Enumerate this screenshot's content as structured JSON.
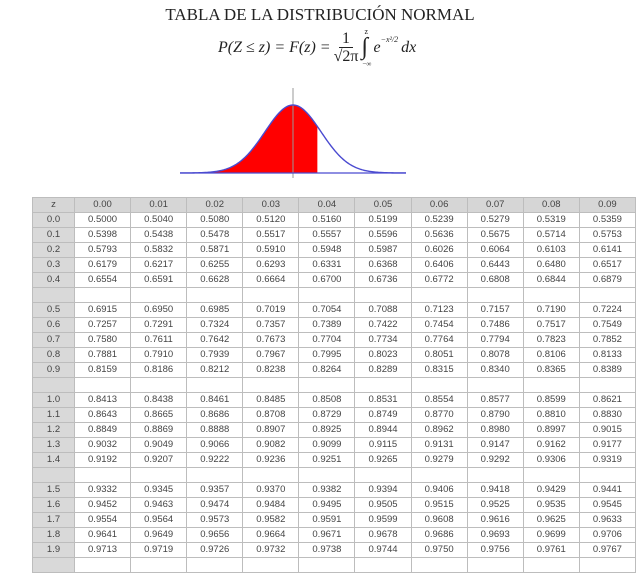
{
  "title": "TABLA DE LA DISTRIBUCIÓN NORMAL",
  "formula": {
    "lhs": "P(Z ≤ z) = F(z) =",
    "numerator": "1",
    "denominator": "√2π",
    "integral": "∫",
    "upper_limit": "z",
    "lower_limit": "−∞",
    "base": "e",
    "exponent": "−x²/2",
    "differential": "dx"
  },
  "curve": {
    "fill_color": "#ff0000",
    "line_color": "#4a4ad0",
    "shaded_to_z": 0.6
  },
  "table": {
    "headers": [
      "z",
      "0.00",
      "0.01",
      "0.02",
      "0.03",
      "0.04",
      "0.05",
      "0.06",
      "0.07",
      "0.08",
      "0.09"
    ],
    "groups": [
      [
        [
          "0.0",
          "0.5000",
          "0.5040",
          "0.5080",
          "0.5120",
          "0.5160",
          "0.5199",
          "0.5239",
          "0.5279",
          "0.5319",
          "0.5359"
        ],
        [
          "0.1",
          "0.5398",
          "0.5438",
          "0.5478",
          "0.5517",
          "0.5557",
          "0.5596",
          "0.5636",
          "0.5675",
          "0.5714",
          "0.5753"
        ],
        [
          "0.2",
          "0.5793",
          "0.5832",
          "0.5871",
          "0.5910",
          "0.5948",
          "0.5987",
          "0.6026",
          "0.6064",
          "0.6103",
          "0.6141"
        ],
        [
          "0.3",
          "0.6179",
          "0.6217",
          "0.6255",
          "0.6293",
          "0.6331",
          "0.6368",
          "0.6406",
          "0.6443",
          "0.6480",
          "0.6517"
        ],
        [
          "0.4",
          "0.6554",
          "0.6591",
          "0.6628",
          "0.6664",
          "0.6700",
          "0.6736",
          "0.6772",
          "0.6808",
          "0.6844",
          "0.6879"
        ]
      ],
      [
        [
          "0.5",
          "0.6915",
          "0.6950",
          "0.6985",
          "0.7019",
          "0.7054",
          "0.7088",
          "0.7123",
          "0.7157",
          "0.7190",
          "0.7224"
        ],
        [
          "0.6",
          "0.7257",
          "0.7291",
          "0.7324",
          "0.7357",
          "0.7389",
          "0.7422",
          "0.7454",
          "0.7486",
          "0.7517",
          "0.7549"
        ],
        [
          "0.7",
          "0.7580",
          "0.7611",
          "0.7642",
          "0.7673",
          "0.7704",
          "0.7734",
          "0.7764",
          "0.7794",
          "0.7823",
          "0.7852"
        ],
        [
          "0.8",
          "0.7881",
          "0.7910",
          "0.7939",
          "0.7967",
          "0.7995",
          "0.8023",
          "0.8051",
          "0.8078",
          "0.8106",
          "0.8133"
        ],
        [
          "0.9",
          "0.8159",
          "0.8186",
          "0.8212",
          "0.8238",
          "0.8264",
          "0.8289",
          "0.8315",
          "0.8340",
          "0.8365",
          "0.8389"
        ]
      ],
      [
        [
          "1.0",
          "0.8413",
          "0.8438",
          "0.8461",
          "0.8485",
          "0.8508",
          "0.8531",
          "0.8554",
          "0.8577",
          "0.8599",
          "0.8621"
        ],
        [
          "1.1",
          "0.8643",
          "0.8665",
          "0.8686",
          "0.8708",
          "0.8729",
          "0.8749",
          "0.8770",
          "0.8790",
          "0.8810",
          "0.8830"
        ],
        [
          "1.2",
          "0.8849",
          "0.8869",
          "0.8888",
          "0.8907",
          "0.8925",
          "0.8944",
          "0.8962",
          "0.8980",
          "0.8997",
          "0.9015"
        ],
        [
          "1.3",
          "0.9032",
          "0.9049",
          "0.9066",
          "0.9082",
          "0.9099",
          "0.9115",
          "0.9131",
          "0.9147",
          "0.9162",
          "0.9177"
        ],
        [
          "1.4",
          "0.9192",
          "0.9207",
          "0.9222",
          "0.9236",
          "0.9251",
          "0.9265",
          "0.9279",
          "0.9292",
          "0.9306",
          "0.9319"
        ]
      ],
      [
        [
          "1.5",
          "0.9332",
          "0.9345",
          "0.9357",
          "0.9370",
          "0.9382",
          "0.9394",
          "0.9406",
          "0.9418",
          "0.9429",
          "0.9441"
        ],
        [
          "1.6",
          "0.9452",
          "0.9463",
          "0.9474",
          "0.9484",
          "0.9495",
          "0.9505",
          "0.9515",
          "0.9525",
          "0.9535",
          "0.9545"
        ],
        [
          "1.7",
          "0.9554",
          "0.9564",
          "0.9573",
          "0.9582",
          "0.9591",
          "0.9599",
          "0.9608",
          "0.9616",
          "0.9625",
          "0.9633"
        ],
        [
          "1.8",
          "0.9641",
          "0.9649",
          "0.9656",
          "0.9664",
          "0.9671",
          "0.9678",
          "0.9686",
          "0.9693",
          "0.9699",
          "0.9706"
        ],
        [
          "1.9",
          "0.9713",
          "0.9719",
          "0.9726",
          "0.9732",
          "0.9738",
          "0.9744",
          "0.9750",
          "0.9756",
          "0.9761",
          "0.9767"
        ]
      ]
    ]
  }
}
